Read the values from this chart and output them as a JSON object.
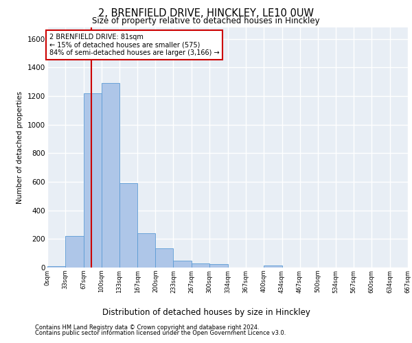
{
  "title_line1": "2, BRENFIELD DRIVE, HINCKLEY, LE10 0UW",
  "title_line2": "Size of property relative to detached houses in Hinckley",
  "xlabel": "Distribution of detached houses by size in Hinckley",
  "ylabel": "Number of detached properties",
  "footnote1": "Contains HM Land Registry data © Crown copyright and database right 2024.",
  "footnote2": "Contains public sector information licensed under the Open Government Licence v3.0.",
  "annotation_line1": "2 BRENFIELD DRIVE: 81sqm",
  "annotation_line2": "← 15% of detached houses are smaller (575)",
  "annotation_line3": "84% of semi-detached houses are larger (3,166) →",
  "bar_edges": [
    0,
    33,
    67,
    100,
    133,
    167,
    200,
    233,
    267,
    300,
    334,
    367,
    400,
    434,
    467,
    500,
    534,
    567,
    600,
    634,
    667
  ],
  "bar_heights": [
    10,
    220,
    1220,
    1290,
    590,
    240,
    135,
    50,
    30,
    25,
    0,
    0,
    15,
    0,
    0,
    0,
    0,
    0,
    0,
    0
  ],
  "bar_color": "#aec6e8",
  "bar_edge_color": "#5b9bd5",
  "vline_x": 81,
  "vline_color": "#cc0000",
  "annotation_box_color": "#cc0000",
  "ylim": [
    0,
    1680
  ],
  "xlim": [
    0,
    667
  ],
  "bg_color": "#e8eef5",
  "grid_color": "#ffffff",
  "tick_labels": [
    "0sqm",
    "33sqm",
    "67sqm",
    "100sqm",
    "133sqm",
    "167sqm",
    "200sqm",
    "233sqm",
    "267sqm",
    "300sqm",
    "334sqm",
    "367sqm",
    "400sqm",
    "434sqm",
    "467sqm",
    "500sqm",
    "534sqm",
    "567sqm",
    "600sqm",
    "634sqm",
    "667sqm"
  ],
  "tick_positions": [
    0,
    33,
    67,
    100,
    133,
    167,
    200,
    233,
    267,
    300,
    334,
    367,
    400,
    434,
    467,
    500,
    534,
    567,
    600,
    634,
    667
  ]
}
